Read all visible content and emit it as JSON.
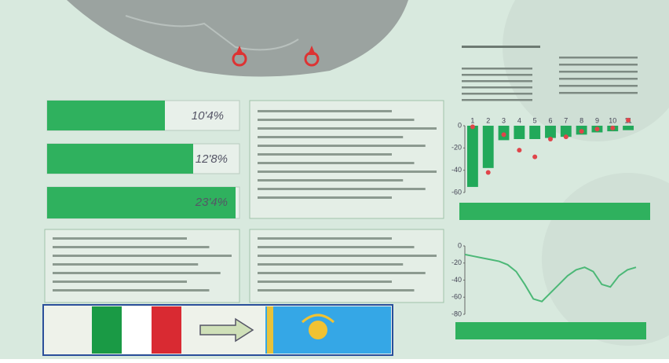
{
  "stats": [
    "10'4%",
    "12'8%",
    "23'4%"
  ],
  "chart_data": [
    {
      "type": "bar",
      "categories": [
        "1",
        "2",
        "3",
        "4",
        "5",
        "6",
        "7",
        "8",
        "9",
        "10",
        "11"
      ],
      "series": [
        {
          "color": "#22a95a",
          "style": "bar",
          "values": [
            -55,
            -38,
            -13,
            -12,
            -12,
            -11,
            -10,
            -8,
            -6,
            -5,
            -4
          ]
        },
        {
          "color": "#e0454a",
          "style": "marker",
          "values": [
            -1,
            -42,
            -8,
            -22,
            -28,
            -12,
            -10,
            -5,
            -3,
            -2,
            5
          ]
        }
      ],
      "ylim": [
        -60,
        0
      ],
      "yticks": [
        0,
        -20,
        -40,
        -60
      ]
    },
    {
      "type": "line",
      "color": "#4cb877",
      "values": [
        -10,
        -12,
        -14,
        -16,
        -18,
        -22,
        -30,
        -45,
        -62,
        -65,
        -55,
        -45,
        -35,
        -28,
        -25,
        -30,
        -45,
        -48,
        -35,
        -28,
        -25
      ],
      "ylim": [
        -80,
        0
      ],
      "yticks": [
        0,
        -20,
        -40,
        -60,
        -80
      ]
    }
  ]
}
